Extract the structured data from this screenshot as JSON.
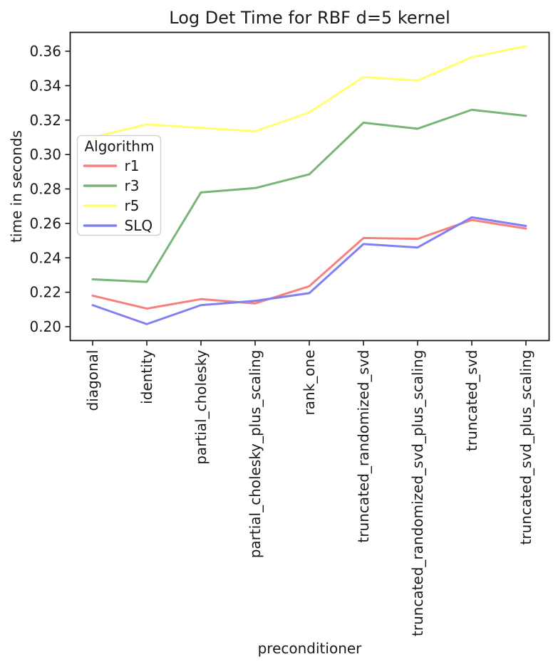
{
  "chart_data": {
    "type": "line",
    "title": "Log Det Time for RBF d=5 kernel",
    "xlabel": "preconditioner",
    "ylabel": "time in seconds",
    "grid": false,
    "legend": {
      "title": "Algorithm",
      "position": "upper left"
    },
    "categories": [
      "diagonal",
      "identity",
      "partial_cholesky",
      "partial_cholesky_plus_scaling",
      "rank_one",
      "truncated_randomized_svd",
      "truncated_randomized_svd_plus_scaling",
      "truncated_svd",
      "truncated_svd_plus_scaling"
    ],
    "series": [
      {
        "name": "r1",
        "color": "#f7807f",
        "values": [
          0.218,
          0.2105,
          0.216,
          0.2135,
          0.2235,
          0.2515,
          0.251,
          0.262,
          0.257
        ]
      },
      {
        "name": "r3",
        "color": "#79b579",
        "values": [
          0.2275,
          0.226,
          0.278,
          0.2805,
          0.2885,
          0.3185,
          0.315,
          0.326,
          0.3225
        ]
      },
      {
        "name": "r5",
        "color": "#ffff70",
        "values": [
          0.31,
          0.3175,
          0.3155,
          0.3135,
          0.3245,
          0.345,
          0.343,
          0.3565,
          0.363
        ]
      },
      {
        "name": "SLQ",
        "color": "#8080f2",
        "values": [
          0.2125,
          0.2015,
          0.2125,
          0.215,
          0.2195,
          0.248,
          0.246,
          0.2635,
          0.2585
        ]
      }
    ],
    "yticks": [
      "0.20",
      "0.22",
      "0.24",
      "0.26",
      "0.28",
      "0.30",
      "0.32",
      "0.34",
      "0.36"
    ],
    "ytick_values": [
      0.2,
      0.22,
      0.24,
      0.26,
      0.28,
      0.3,
      0.32,
      0.34,
      0.36
    ],
    "ylim": [
      0.192,
      0.371
    ],
    "axis_color": "#1a1a1a"
  }
}
